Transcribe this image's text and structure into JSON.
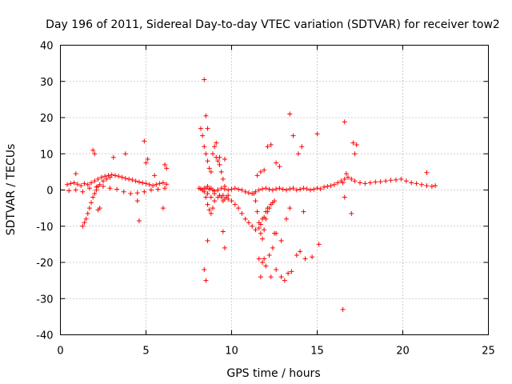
{
  "chart_data": {
    "type": "scatter",
    "title": "Day 196 of 2011, Sidereal Day-to-day VTEC variation (SDTVAR) for receiver tow2",
    "xlabel": "GPS time / hours",
    "ylabel": "SDTVAR / TECUs",
    "xlim": [
      0,
      25
    ],
    "ylim": [
      -40,
      40
    ],
    "xticks": [
      0,
      5,
      10,
      15,
      20,
      25
    ],
    "yticks": [
      -40,
      -30,
      -20,
      -10,
      0,
      10,
      20,
      30,
      40
    ],
    "grid": true,
    "marker": "+",
    "color": "#ff0000",
    "series": [
      {
        "name": "tow2",
        "x": [
          0.4,
          0.6,
          0.8,
          1.0,
          1.2,
          1.4,
          1.6,
          1.8,
          2.0,
          2.2,
          2.4,
          2.6,
          2.8,
          3.0,
          3.2,
          3.4,
          3.6,
          3.8,
          4.0,
          4.2,
          4.4,
          4.6,
          4.8,
          5.0,
          5.2,
          5.4,
          5.6,
          5.8,
          6.0,
          6.2,
          0.5,
          0.9,
          1.3,
          1.7,
          2.1,
          2.5,
          2.9,
          3.3,
          3.7,
          4.1,
          4.5,
          4.9,
          5.3,
          5.7,
          6.1,
          1.3,
          1.4,
          1.5,
          1.6,
          1.7,
          1.8,
          1.9,
          2.0,
          2.1,
          2.2,
          2.3,
          2.5,
          2.7,
          2.9,
          0.9,
          1.9,
          2.0,
          2.2,
          3.1,
          3.8,
          4.6,
          4.9,
          5.0,
          5.1,
          5.5,
          6.0,
          6.1,
          6.2,
          2.3,
          4.5,
          8.1,
          8.2,
          8.3,
          8.4,
          8.5,
          8.6,
          8.7,
          8.8,
          8.9,
          9.0,
          9.2,
          9.4,
          9.6,
          9.8,
          10.0,
          10.2,
          10.4,
          10.6,
          10.8,
          11.0,
          11.2,
          11.4,
          11.6,
          11.8,
          12.0,
          12.2,
          12.4,
          12.6,
          12.8,
          13.0,
          13.2,
          13.4,
          13.6,
          13.8,
          14.0,
          14.2,
          14.4,
          14.6,
          14.8,
          15.0,
          15.2,
          15.4,
          15.6,
          15.8,
          16.0,
          16.2,
          16.4,
          16.6,
          16.8,
          17.0,
          17.2,
          17.5,
          17.8,
          18.1,
          18.4,
          18.7,
          19.0,
          19.3,
          19.6,
          19.9,
          20.2,
          20.5,
          20.8,
          21.1,
          21.4,
          21.7,
          21.9,
          8.2,
          8.3,
          8.4,
          8.5,
          8.6,
          8.7,
          8.8,
          8.9,
          9.0,
          9.1,
          9.2,
          9.3,
          9.4,
          9.5,
          9.6,
          8.5,
          8.6,
          8.7,
          8.8,
          8.9,
          9.0,
          9.2,
          9.3,
          9.4,
          9.5,
          9.6,
          9.7,
          9.8,
          8.4,
          8.6,
          8.8,
          9.0,
          9.2,
          9.5,
          9.8,
          10.0,
          10.2,
          10.4,
          10.6,
          10.8,
          11.0,
          11.2,
          11.4,
          11.6,
          11.7,
          11.8,
          11.9,
          12.0,
          12.1,
          11.3,
          11.4,
          11.5,
          11.6,
          11.7,
          11.8,
          11.9,
          12.0,
          12.1,
          12.2,
          12.3,
          12.4,
          12.5,
          8.4,
          8.5,
          8.6,
          9.1,
          9.3,
          9.6,
          11.5,
          11.7,
          11.9,
          12.1,
          12.3,
          12.6,
          12.8,
          13.4,
          13.6,
          13.9,
          14.1,
          15.0,
          16.6,
          16.7,
          16.5,
          17.1,
          17.3,
          17.2,
          21.4,
          11.6,
          11.8,
          12.0,
          12.2,
          12.4,
          12.6,
          12.9,
          13.1,
          13.5,
          13.8,
          14.0,
          14.3,
          14.7,
          15.1,
          16.5,
          17.0,
          12.5,
          13.3,
          8.4,
          8.5,
          9.5,
          9.6,
          12.3,
          12.6,
          13.2,
          13.4,
          8.6,
          14.2,
          16.6,
          11.7,
          11.9,
          12.9
        ],
        "y": [
          1.5,
          1.8,
          2.0,
          1.6,
          1.2,
          1.8,
          1.5,
          2.0,
          2.5,
          3.0,
          3.5,
          3.8,
          4.0,
          4.2,
          4.0,
          3.8,
          3.5,
          3.2,
          3.0,
          2.8,
          2.5,
          2.2,
          2.0,
          1.8,
          1.5,
          1.2,
          1.5,
          1.8,
          2.0,
          1.6,
          -0.2,
          0.0,
          -0.5,
          0.5,
          0.8,
          1.0,
          0.5,
          0.2,
          -0.5,
          -1.0,
          -0.8,
          -0.5,
          0.0,
          0.2,
          0.5,
          -10.0,
          -9.0,
          -8.0,
          -6.5,
          -5.0,
          -3.5,
          -2.0,
          -1.0,
          0.0,
          1.0,
          1.5,
          2.5,
          3.0,
          3.5,
          4.5,
          11.0,
          10.0,
          -5.5,
          9.0,
          10.0,
          -8.5,
          13.5,
          7.5,
          8.5,
          4.0,
          -5.0,
          7.0,
          6.0,
          -5.0,
          -3.0,
          0.5,
          0.3,
          0.0,
          -0.5,
          0.5,
          1.0,
          0.2,
          0.5,
          0.0,
          -0.3,
          0.0,
          0.5,
          0.3,
          0.0,
          0.2,
          0.5,
          0.2,
          0.0,
          -0.5,
          -0.8,
          -1.0,
          -0.5,
          0.0,
          0.3,
          0.5,
          0.2,
          0.0,
          0.3,
          0.5,
          0.2,
          0.0,
          0.3,
          0.5,
          0.0,
          0.2,
          0.5,
          0.3,
          0.0,
          0.2,
          0.5,
          0.3,
          0.8,
          1.0,
          1.2,
          1.5,
          2.0,
          2.5,
          3.0,
          3.5,
          3.0,
          2.5,
          2.0,
          1.8,
          2.0,
          2.2,
          2.3,
          2.5,
          2.7,
          2.8,
          3.0,
          2.5,
          2.0,
          1.8,
          1.5,
          1.2,
          1.0,
          1.2,
          17.0,
          15.0,
          12.0,
          10.0,
          8.0,
          6.0,
          5.0,
          10.0,
          12.0,
          9.0,
          8.0,
          7.0,
          5.0,
          3.0,
          1.0,
          -2.0,
          -4.0,
          -5.5,
          -6.5,
          -5.0,
          -3.0,
          -2.0,
          -1.5,
          -2.0,
          -3.0,
          -2.5,
          -2.0,
          -1.5,
          0.5,
          -1.0,
          -2.0,
          -1.0,
          0.0,
          -1.5,
          -2.5,
          -3.0,
          -4.0,
          -5.0,
          -6.5,
          -8.0,
          -9.0,
          -10.0,
          -11.0,
          -10.5,
          -9.5,
          -8.0,
          -7.5,
          -6.0,
          -5.0,
          -1.0,
          -3.0,
          -6.0,
          -9.0,
          -12.0,
          -13.5,
          -11.0,
          -8.0,
          -6.0,
          -5.0,
          -4.0,
          -3.5,
          -3.0,
          30.5,
          20.5,
          17.0,
          13.0,
          9.0,
          8.5,
          4.0,
          5.0,
          5.5,
          12.0,
          12.5,
          7.5,
          6.5,
          21.0,
          15.0,
          10.0,
          12.0,
          15.5,
          18.8,
          4.5,
          2.0,
          13.0,
          12.5,
          10.0,
          4.8,
          -19.0,
          -20.0,
          -21.0,
          -18.0,
          -16.0,
          -22.0,
          -24.0,
          -25.0,
          -22.5,
          -18.0,
          -17.0,
          -19.0,
          -18.5,
          -15.0,
          -33.0,
          -6.5,
          -12.0,
          -23.0,
          -22.0,
          -25.0,
          -11.5,
          -16.0,
          -24.0,
          -12.0,
          -8.0,
          -5.0,
          -14.0,
          -6.0,
          -2.0,
          -24.0,
          -19.0,
          -14.0
        ]
      }
    ]
  }
}
